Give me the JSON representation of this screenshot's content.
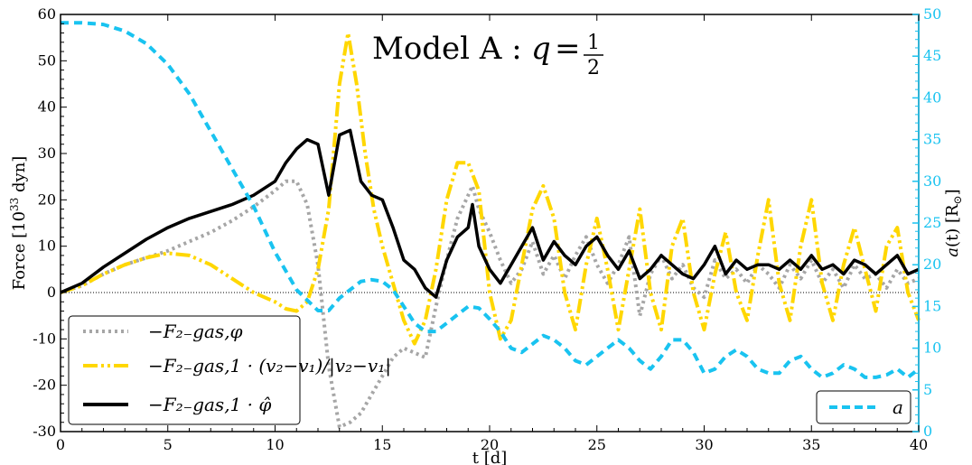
{
  "chart_data": {
    "type": "line",
    "title_prefix": "Model A :",
    "title_q": "q",
    "title_eq": "=",
    "title_num": "1",
    "title_den": "2",
    "xlabel": "t [d]",
    "ylabel_left_pre": "Force [10",
    "ylabel_left_exp": "33",
    "ylabel_left_post": " dyn]",
    "ylabel_right_a": "a",
    "ylabel_right_t": "(t) [R",
    "ylabel_right_sun": "⊙",
    "ylabel_right_end": "]",
    "xlim": [
      0,
      40
    ],
    "ylim_left": [
      -30,
      60
    ],
    "ylim_right": [
      0,
      50
    ],
    "xticks": [
      "0",
      "5",
      "10",
      "15",
      "20",
      "25",
      "30",
      "35",
      "40"
    ],
    "yticks_left": [
      "-30",
      "-20",
      "-10",
      "0",
      "10",
      "20",
      "30",
      "40",
      "50",
      "60"
    ],
    "yticks_right": [
      "0",
      "5",
      "10",
      "15",
      "20",
      "25",
      "30",
      "35",
      "40",
      "45",
      "50"
    ],
    "colors": {
      "gray": "#a6a6a6",
      "gold": "#ffd700",
      "black": "#000000",
      "cyan": "#19c3f0"
    },
    "legend_left": [
      {
        "key": "gray",
        "label": "−F₂₋gas,φ"
      },
      {
        "key": "gold",
        "label": "−F₂₋gas,1 · (v₂−v₁)/|v₂−v₁|"
      },
      {
        "key": "black",
        "label": "−F₂₋gas,1 · φ̂"
      }
    ],
    "legend_right": [
      {
        "key": "cyan",
        "label": "a"
      }
    ],
    "series": [
      {
        "name": "-F_2-gas,phi",
        "key": "gray",
        "axis": "left",
        "x": [
          0,
          1,
          2,
          3,
          4,
          5,
          6,
          7,
          8,
          9,
          10,
          10.5,
          11,
          11.5,
          12,
          12.5,
          13,
          13.5,
          14,
          14.5,
          15,
          15.5,
          16,
          16.5,
          17,
          17.5,
          18,
          18.5,
          19,
          19.2,
          19.5,
          20,
          20.5,
          21,
          21.5,
          22,
          22.5,
          23,
          23.5,
          24,
          24.5,
          25,
          25.5,
          26,
          26.5,
          27,
          27.5,
          28,
          28.5,
          29,
          29.5,
          30,
          30.5,
          31,
          31.5,
          32,
          32.5,
          33,
          33.5,
          34,
          34.5,
          35,
          35.5,
          36,
          36.5,
          37,
          37.5,
          38,
          38.5,
          39,
          39.5,
          40
        ],
        "y": [
          0,
          1.5,
          4,
          6,
          7.5,
          9,
          11,
          13,
          15.5,
          18.5,
          22,
          24,
          24,
          19,
          6,
          -16,
          -29,
          -28,
          -26,
          -22,
          -18,
          -14,
          -12,
          -13,
          -14,
          -3,
          7,
          16,
          21,
          23,
          18,
          13,
          7,
          2,
          5,
          11,
          4,
          8,
          3,
          8,
          12,
          6,
          2,
          6,
          12,
          -5,
          4,
          8,
          3,
          6,
          1,
          -1,
          7,
          3,
          5,
          2,
          6,
          4,
          1,
          6,
          3,
          7,
          2,
          5,
          1,
          6,
          3,
          4,
          1,
          5,
          2,
          3
        ]
      },
      {
        "name": "-F_2-gas,1 dot vhat",
        "key": "gold",
        "axis": "left",
        "x": [
          0,
          1,
          2,
          3,
          4,
          5,
          6,
          7,
          8,
          9,
          10,
          10.5,
          11,
          11.5,
          12,
          12.5,
          13,
          13.4,
          13.8,
          14.2,
          14.6,
          15,
          15.5,
          16,
          16.5,
          17,
          17.5,
          18,
          18.5,
          19,
          19.5,
          20,
          20.5,
          21,
          21.5,
          22,
          22.5,
          23,
          23.5,
          24,
          24.5,
          25,
          25.5,
          26,
          26.5,
          27,
          27.5,
          28,
          28.5,
          29,
          29.5,
          30,
          30.5,
          31,
          31.5,
          32,
          32.5,
          33,
          33.5,
          34,
          34.5,
          35,
          35.5,
          36,
          36.5,
          37,
          37.5,
          38,
          38.5,
          39,
          39.5,
          40
        ],
        "y": [
          0,
          1.5,
          4,
          6,
          7.5,
          8.5,
          8,
          6,
          3,
          0,
          -2,
          -3.5,
          -4,
          -2,
          5,
          18,
          45,
          56,
          45,
          30,
          18,
          10,
          2,
          -6,
          -11,
          -6,
          5,
          20,
          28,
          28,
          22,
          0,
          -10,
          -6,
          6,
          18,
          23,
          16,
          0,
          -8,
          6,
          16,
          5,
          -8,
          5,
          18,
          0,
          -8,
          10,
          16,
          0,
          -8,
          4,
          13,
          0,
          -6,
          8,
          20,
          2,
          -6,
          10,
          20,
          2,
          -6,
          6,
          14,
          5,
          -4,
          10,
          14,
          0,
          -6
        ]
      },
      {
        "name": "-F_2-gas,1 dot phihat",
        "key": "black",
        "axis": "left",
        "x": [
          0,
          1,
          2,
          3,
          4,
          5,
          6,
          7,
          8,
          9,
          10,
          10.5,
          11,
          11.5,
          12,
          12.5,
          13,
          13.5,
          14,
          14.5,
          15,
          15.5,
          16,
          16.5,
          17,
          17.5,
          18,
          18.5,
          19,
          19.2,
          19.5,
          20,
          20.5,
          21,
          21.5,
          22,
          22.5,
          23,
          23.5,
          24,
          24.5,
          25,
          25.5,
          26,
          26.5,
          27,
          27.5,
          28,
          28.5,
          29,
          29.5,
          30,
          30.5,
          31,
          31.5,
          32,
          32.5,
          33,
          33.5,
          34,
          34.5,
          35,
          35.5,
          36,
          36.5,
          37,
          37.5,
          38,
          38.5,
          39,
          39.5,
          40
        ],
        "y": [
          0,
          2,
          5.5,
          8.5,
          11.5,
          14,
          16,
          17.5,
          19,
          21,
          24,
          28,
          31,
          33,
          32,
          21,
          34,
          35,
          24,
          21,
          20,
          14,
          7,
          5,
          1,
          -1,
          7,
          12,
          14,
          19,
          10,
          5,
          2,
          6,
          10,
          14,
          7,
          11,
          8,
          6,
          10,
          12,
          8,
          5,
          9,
          3,
          5,
          8,
          6,
          4,
          3,
          6,
          10,
          4,
          7,
          5,
          6,
          6,
          5,
          7,
          5,
          8,
          5,
          6,
          4,
          7,
          6,
          4,
          6,
          8,
          4,
          5
        ]
      },
      {
        "name": "a",
        "key": "cyan",
        "axis": "right",
        "x": [
          0,
          1,
          2,
          3,
          4,
          5,
          6,
          7,
          8,
          9,
          10,
          11,
          12,
          12.5,
          13,
          13.5,
          14,
          14.5,
          15,
          15.5,
          16,
          16.5,
          17,
          17.5,
          18,
          18.5,
          19,
          19.5,
          20,
          20.5,
          21,
          21.5,
          22,
          22.5,
          23,
          23.5,
          24,
          24.5,
          25,
          25.5,
          26,
          26.5,
          27,
          27.5,
          28,
          28.5,
          29,
          29.5,
          30,
          30.5,
          31,
          31.5,
          32,
          32.5,
          33,
          33.5,
          34,
          34.5,
          35,
          35.5,
          36,
          36.5,
          37,
          37.5,
          38,
          38.5,
          39,
          39.5,
          40
        ],
        "y": [
          49,
          49,
          48.8,
          48,
          46.5,
          44,
          40.5,
          36,
          31.5,
          27,
          21.5,
          17,
          14.5,
          14.5,
          16,
          17,
          18,
          18.2,
          18,
          17,
          15,
          13,
          12,
          12,
          13,
          14,
          15,
          14.8,
          13.5,
          12,
          10,
          9.5,
          10.5,
          11.5,
          11,
          10,
          8.5,
          8,
          9,
          10,
          11,
          10,
          8.5,
          7.5,
          9,
          11,
          11,
          9.5,
          7,
          7.5,
          9,
          9.8,
          9,
          7.5,
          7,
          7,
          8.5,
          9,
          7.5,
          6.5,
          7,
          8,
          7.5,
          6.5,
          6.5,
          6.8,
          7.5,
          6.5,
          7.5
        ]
      }
    ]
  }
}
